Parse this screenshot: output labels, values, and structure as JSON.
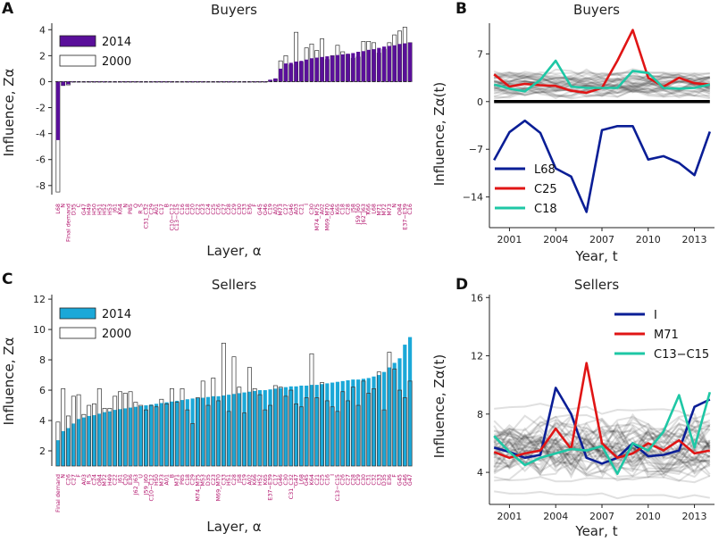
{
  "chart_data": [
    {
      "id": "A",
      "panel_label": "A",
      "type": "bar",
      "title": "Buyers",
      "xlabel": "Layer, α",
      "ylabel": "Influence, Zα",
      "ylim": [
        -8.7,
        4.5
      ],
      "yticks": [
        -8,
        -6,
        -4,
        -2,
        0,
        2,
        4
      ],
      "legend_position": "top-left",
      "colors": {
        "y2014": "#5a0f9a",
        "y2000": "#ffffff"
      },
      "series": [
        {
          "name": "2014",
          "values": [
            -4.5,
            -0.3,
            -0.2,
            -0.03,
            -0.03,
            -0.03,
            -0.03,
            -0.03,
            -0.03,
            -0.03,
            -0.03,
            -0.03,
            -0.03,
            -0.03,
            -0.03,
            -0.03,
            -0.03,
            -0.03,
            -0.03,
            -0.03,
            -0.03,
            -0.03,
            -0.03,
            -0.03,
            -0.03,
            -0.03,
            -0.03,
            -0.03,
            -0.03,
            -0.03,
            -0.03,
            -0.03,
            -0.03,
            -0.03,
            -0.03,
            -0.03,
            -0.03,
            -0.03,
            -0.03,
            -0.03,
            -0.03,
            0.15,
            0.25,
            1.0,
            1.4,
            1.45,
            1.55,
            1.6,
            1.7,
            1.8,
            1.85,
            1.9,
            1.95,
            2.0,
            2.05,
            2.1,
            2.15,
            2.2,
            2.3,
            2.35,
            2.45,
            2.5,
            2.6,
            2.7,
            2.75,
            2.8,
            2.9,
            2.95,
            3.0
          ]
        },
        {
          "name": "2000",
          "values": [
            -8.5,
            -0.3,
            -0.25,
            -0.03,
            -0.03,
            -0.03,
            -0.03,
            -0.03,
            -0.03,
            -0.03,
            -0.03,
            -0.03,
            -0.03,
            -0.03,
            -0.03,
            -0.03,
            -0.03,
            -0.03,
            -0.03,
            -0.03,
            -0.03,
            -0.03,
            -0.03,
            -0.03,
            -0.03,
            -0.03,
            -0.03,
            -0.03,
            -0.03,
            -0.03,
            -0.03,
            -0.03,
            -0.03,
            -0.03,
            -0.03,
            -0.03,
            -0.03,
            -0.03,
            -0.03,
            -0.03,
            -0.03,
            0.1,
            0.2,
            1.6,
            2.0,
            1.3,
            3.8,
            1.5,
            2.6,
            2.9,
            2.4,
            3.3,
            1.7,
            2.0,
            2.8,
            2.3,
            2.1,
            1.8,
            1.9,
            3.1,
            3.1,
            3.0,
            2.2,
            2.5,
            3.0,
            3.6,
            3.9,
            4.2,
            3.0
          ]
        }
      ],
      "tick_labels": [
        "L68",
        "N",
        "Final demand",
        "D35",
        "C",
        "G47",
        "H49",
        "H50",
        "H51",
        "H52",
        "H53",
        "J61",
        "K64",
        "N",
        "P85",
        "Q",
        "R_S",
        "C31_C32",
        "C29",
        "A01",
        "C17",
        "B",
        "C10−C12",
        "C13−C15",
        "C16",
        "C18",
        "C20",
        "C22",
        "C23",
        "C24",
        "C25",
        "C26",
        "C27",
        "C28",
        "C29",
        "C30",
        "C33",
        "E36",
        "F",
        "G45",
        "G46",
        "C19",
        "A02",
        "M73",
        "C27",
        "G46",
        "A03",
        "C21",
        "I",
        "C30",
        "M74_M75",
        "A02",
        "M69_M70",
        "G46",
        "K65",
        "C18",
        "C28",
        "J58",
        "J59_J60",
        "J62_J63",
        "K66",
        "L68",
        "M71",
        "M72",
        "M73",
        "N",
        "O84",
        "E37−E39",
        "C16"
      ]
    },
    {
      "id": "B",
      "panel_label": "B",
      "type": "line",
      "title": "Buyers",
      "xlabel": "Year, t",
      "ylabel": "Influence, Zα(t)",
      "x": [
        2000,
        2001,
        2002,
        2003,
        2004,
        2005,
        2006,
        2007,
        2008,
        2009,
        2010,
        2011,
        2012,
        2013,
        2014
      ],
      "xticks": [
        2001,
        2004,
        2007,
        2010,
        2013
      ],
      "yticks": [
        7,
        0,
        -7,
        -14
      ],
      "ylim": [
        -18.5,
        11.5
      ],
      "legend_position": "bottom-left",
      "series": [
        {
          "name": "L68",
          "color": "#0a1e96",
          "values": [
            -8.6,
            -4.5,
            -2.8,
            -4.6,
            -9.8,
            -11.0,
            -16.2,
            -4.2,
            -3.6,
            -3.6,
            -8.5,
            -8.0,
            -9.0,
            -10.8,
            -4.4
          ]
        },
        {
          "name": "C25",
          "color": "#e01515",
          "values": [
            4.0,
            2.2,
            2.6,
            2.4,
            2.3,
            1.6,
            1.3,
            2.0,
            6.0,
            10.5,
            3.5,
            2.2,
            3.5,
            2.7,
            2.5
          ]
        },
        {
          "name": "C18",
          "color": "#1ec7a5",
          "values": [
            2.5,
            1.9,
            1.5,
            3.2,
            6.0,
            2.2,
            2.0,
            2.0,
            2.0,
            4.5,
            4.2,
            2.0,
            1.9,
            2.0,
            2.5
          ]
        }
      ]
    },
    {
      "id": "C",
      "panel_label": "C",
      "type": "bar",
      "title": "Sellers",
      "xlabel": "Layer, α",
      "ylabel": "Influence, Zα",
      "ylim": [
        1,
        12.3
      ],
      "yticks": [
        2,
        4,
        6,
        8,
        10,
        12
      ],
      "legend_position": "top-left",
      "colors": {
        "y2014": "#1ba8d8",
        "y2000": "#ffffff"
      },
      "series": [
        {
          "name": "2014",
          "values": [
            2.7,
            3.3,
            3.5,
            3.8,
            4.1,
            4.2,
            4.3,
            4.35,
            4.45,
            4.55,
            4.6,
            4.7,
            4.75,
            4.8,
            4.85,
            4.9,
            4.95,
            5.0,
            5.05,
            5.1,
            5.15,
            5.2,
            5.25,
            5.3,
            5.35,
            5.4,
            5.45,
            5.5,
            5.5,
            5.55,
            5.6,
            5.6,
            5.65,
            5.7,
            5.75,
            5.8,
            5.85,
            5.9,
            5.95,
            6.0,
            6.0,
            6.05,
            6.1,
            6.15,
            6.2,
            6.25,
            6.25,
            6.3,
            6.3,
            6.35,
            6.35,
            6.4,
            6.45,
            6.5,
            6.55,
            6.6,
            6.65,
            6.7,
            6.7,
            6.75,
            6.8,
            6.9,
            7.0,
            7.2,
            7.5,
            7.8,
            8.1,
            9.0,
            9.5
          ]
        },
        {
          "name": "2000",
          "values": [
            3.9,
            6.1,
            4.3,
            5.6,
            5.7,
            4.4,
            5.0,
            5.1,
            6.1,
            4.8,
            4.8,
            5.6,
            5.9,
            5.8,
            5.9,
            5.2,
            5.0,
            4.7,
            5.0,
            4.9,
            5.4,
            5.1,
            6.1,
            5.2,
            6.1,
            4.7,
            3.8,
            5.5,
            6.6,
            5.0,
            6.8,
            5.3,
            9.1,
            4.6,
            8.2,
            6.2,
            4.5,
            7.5,
            6.1,
            5.7,
            4.7,
            5.0,
            6.3,
            6.2,
            5.6,
            6.0,
            5.1,
            4.9,
            5.5,
            8.4,
            5.5,
            6.5,
            5.3,
            4.9,
            4.6,
            5.9,
            5.3,
            6.2,
            5.0,
            6.6,
            5.8,
            6.1,
            7.2,
            4.7,
            8.5,
            7.4,
            6.0,
            5.5,
            6.6
          ]
        }
      ],
      "tick_labels": [
        "Final demand",
        "N",
        "C26",
        "C27",
        "F",
        "A03",
        "R_S",
        "C24",
        "O84",
        "M72",
        "H49",
        "C22",
        "J61",
        "C20",
        "E36",
        "J62_J63",
        "U",
        "J59_J60",
        "C10−C12",
        "H50",
        "M73",
        "A01",
        "B",
        "M71",
        "P85",
        "C18",
        "C29",
        "M74_M75",
        "M53",
        "D35",
        "C23",
        "M69_M70",
        "C33",
        "H51",
        "C28",
        "J58",
        "C19",
        "A02",
        "K66",
        "H52",
        "K65",
        "E37−E39",
        "C17",
        "G46",
        "C30",
        "C31_C32",
        "G47",
        "L68",
        "G45",
        "K64",
        "C21",
        "C25",
        "C16",
        "I",
        "C13−C15",
        "C26",
        "C27",
        "C28",
        "C29",
        "C30",
        "C31",
        "C32",
        "C33",
        "D35",
        "E36",
        "F",
        "G45",
        "G46",
        "G47"
      ]
    },
    {
      "id": "D",
      "panel_label": "D",
      "type": "line",
      "title": "Sellers",
      "xlabel": "Year, t",
      "ylabel": "Influence, Zα(t)",
      "x": [
        2000,
        2001,
        2002,
        2003,
        2004,
        2005,
        2006,
        2007,
        2008,
        2009,
        2010,
        2011,
        2012,
        2013,
        2014
      ],
      "xticks": [
        2001,
        2004,
        2007,
        2010,
        2013
      ],
      "yticks": [
        4,
        8,
        12,
        16
      ],
      "ylim": [
        1.8,
        16.2
      ],
      "legend_position": "top-right",
      "series": [
        {
          "name": "I",
          "color": "#0a1e96",
          "values": [
            5.7,
            5.4,
            5.0,
            5.2,
            9.8,
            8.0,
            5.0,
            4.6,
            5.0,
            6.0,
            5.1,
            5.2,
            5.5,
            8.5,
            9.0
          ]
        },
        {
          "name": "M71",
          "color": "#e01515",
          "values": [
            5.4,
            5.0,
            5.3,
            5.5,
            7.0,
            5.6,
            11.5,
            6.0,
            5.0,
            5.3,
            6.0,
            5.5,
            6.2,
            5.3,
            5.5
          ]
        },
        {
          "name": "C13−C15",
          "color": "#1ec7a5",
          "values": [
            6.5,
            5.4,
            4.5,
            5.0,
            5.3,
            5.6,
            5.5,
            5.8,
            3.9,
            6.0,
            5.5,
            6.8,
            9.3,
            5.7,
            9.5
          ]
        }
      ]
    }
  ]
}
